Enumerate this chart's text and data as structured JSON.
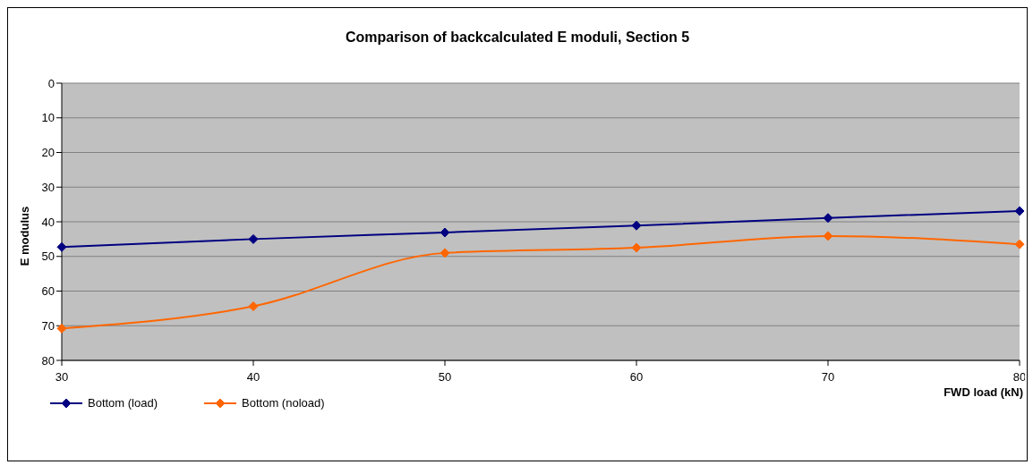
{
  "chart_data": {
    "type": "line",
    "title": "Comparison of backcalculated E moduli, Section 5",
    "xlabel": "FWD load (kN)",
    "ylabel": "E modulus",
    "categories": [
      "30",
      "40",
      "50",
      "60",
      "70",
      "80"
    ],
    "series": [
      {
        "name": "Bottom (load)",
        "color": "#000080",
        "values": [
          47.3,
          45.0,
          43.1,
          41.1,
          38.9,
          36.9
        ]
      },
      {
        "name": "Bottom (noload)",
        "color": "#ff6600",
        "values": [
          70.8,
          64.4,
          49.0,
          47.5,
          44.1,
          46.5
        ]
      }
    ],
    "ylim": [
      80,
      0
    ],
    "yticks": [
      0,
      10,
      20,
      30,
      40,
      50,
      60,
      70,
      80
    ],
    "grid": "y",
    "legend": "bottom left",
    "marker": "diamond",
    "line_style": "solid"
  }
}
